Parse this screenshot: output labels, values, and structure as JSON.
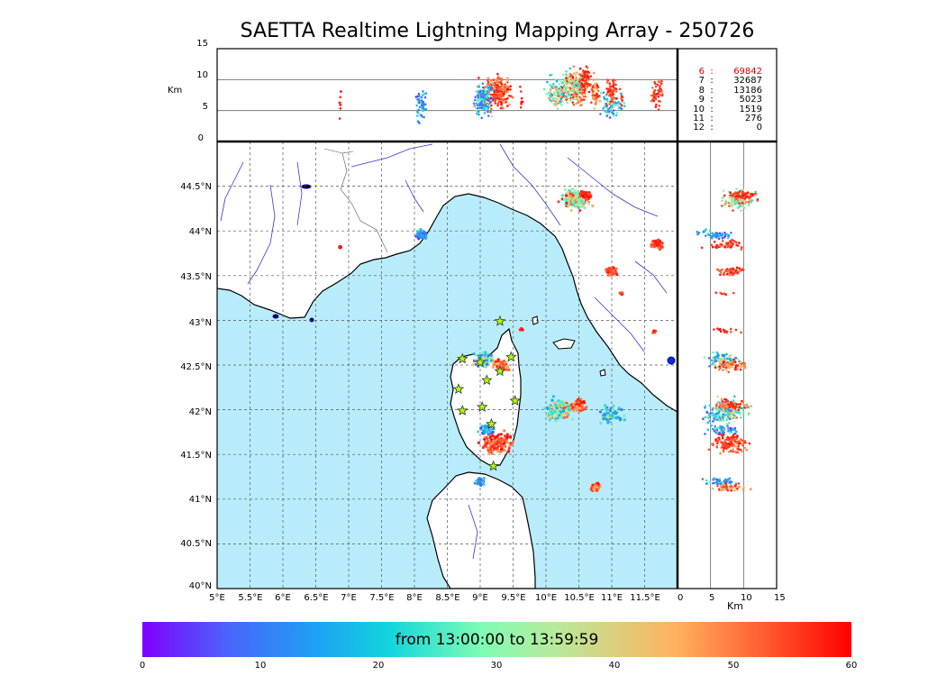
{
  "title": "SAETTA Realtime Lightning Mapping Array - 250726",
  "colors": {
    "sea": "#b8ecfb",
    "land": "#ffffff",
    "grid": "#555555",
    "rivers": "#3333dd",
    "station": "#aaff00",
    "highlight_level": "#dd0000"
  },
  "alt_panel": {
    "unit": "Km",
    "ticks": [
      "15",
      "10",
      "5",
      "0"
    ]
  },
  "right_panel": {
    "unit": "Km",
    "ticks": [
      "0",
      "5",
      "10",
      "15"
    ]
  },
  "map": {
    "lon_ticks": [
      "5°E",
      "5.5°E",
      "6°E",
      "6.5°E",
      "7°E",
      "7.5°E",
      "8°E",
      "8.5°E",
      "9°E",
      "9.5°E",
      "10°E",
      "10.5°E",
      "11°E",
      "11.5°E"
    ],
    "lat_ticks": [
      "44.5°N",
      "44°N",
      "43.5°N",
      "43°N",
      "42.5°N",
      "42°N",
      "41.5°N",
      "41°N",
      "40.5°N",
      "40°N"
    ],
    "lon_min": 5,
    "lon_max": 12,
    "lat_min": 40,
    "lat_max": 45,
    "stations": [
      [
        9.3,
        42.99
      ],
      [
        8.73,
        42.57
      ],
      [
        9.47,
        42.59
      ],
      [
        9.0,
        42.53
      ],
      [
        9.3,
        42.43
      ],
      [
        9.1,
        42.33
      ],
      [
        8.67,
        42.23
      ],
      [
        9.53,
        42.1
      ],
      [
        9.03,
        42.03
      ],
      [
        8.73,
        41.99
      ],
      [
        9.17,
        41.84
      ],
      [
        9.2,
        41.37
      ]
    ]
  },
  "stats": [
    {
      "level": "6",
      "count": "69842",
      "highlight": true
    },
    {
      "level": "7",
      "count": "32687",
      "highlight": false
    },
    {
      "level": "8",
      "count": "13186",
      "highlight": false
    },
    {
      "level": "9",
      "count": "5023",
      "highlight": false
    },
    {
      "level": "10",
      "count": "1519",
      "highlight": false
    },
    {
      "level": "11",
      "count": "276",
      "highlight": false
    },
    {
      "level": "12",
      "count": "0",
      "highlight": false
    }
  ],
  "colorbar": {
    "caption": "from 13:00:00 to 13:59:59",
    "ticks": [
      "0",
      "10",
      "20",
      "30",
      "40",
      "50",
      "60"
    ],
    "min": 0,
    "max": 60
  },
  "clusters": [
    {
      "lon": 8.1,
      "lat": 43.96,
      "spread": 0.1,
      "minutes": [
        5,
        25
      ],
      "alt": 6,
      "n": 50
    },
    {
      "lon": 9.05,
      "lat": 42.56,
      "spread": 0.15,
      "minutes": [
        5,
        40
      ],
      "alt": 7,
      "n": 90
    },
    {
      "lon": 9.3,
      "lat": 42.5,
      "spread": 0.12,
      "minutes": [
        40,
        60
      ],
      "alt": 8,
      "n": 70
    },
    {
      "lon": 9.25,
      "lat": 41.63,
      "spread": 0.22,
      "minutes": [
        45,
        60
      ],
      "alt": 8,
      "n": 140
    },
    {
      "lon": 9.1,
      "lat": 41.78,
      "spread": 0.12,
      "minutes": [
        2,
        30
      ],
      "alt": 7,
      "n": 50
    },
    {
      "lon": 9.0,
      "lat": 41.2,
      "spread": 0.1,
      "minutes": [
        8,
        30
      ],
      "alt": 6,
      "n": 40
    },
    {
      "lon": 10.2,
      "lat": 42.0,
      "spread": 0.22,
      "minutes": [
        15,
        55
      ],
      "alt": 8,
      "n": 140
    },
    {
      "lon": 10.5,
      "lat": 42.05,
      "spread": 0.12,
      "minutes": [
        45,
        60
      ],
      "alt": 8,
      "n": 70
    },
    {
      "lon": 11.0,
      "lat": 41.95,
      "spread": 0.2,
      "minutes": [
        5,
        35
      ],
      "alt": 6,
      "n": 70
    },
    {
      "lon": 10.45,
      "lat": 44.35,
      "spread": 0.22,
      "minutes": [
        20,
        60
      ],
      "alt": 9,
      "n": 130
    },
    {
      "lon": 10.6,
      "lat": 44.4,
      "spread": 0.08,
      "minutes": [
        50,
        60
      ],
      "alt": 10,
      "n": 60
    },
    {
      "lon": 11.0,
      "lat": 43.55,
      "spread": 0.1,
      "minutes": [
        48,
        60
      ],
      "alt": 8,
      "n": 60
    },
    {
      "lon": 11.7,
      "lat": 43.85,
      "spread": 0.1,
      "minutes": [
        50,
        60
      ],
      "alt": 8,
      "n": 40
    },
    {
      "lon": 10.75,
      "lat": 41.13,
      "spread": 0.08,
      "minutes": [
        40,
        60
      ],
      "alt": 8,
      "n": 50
    },
    {
      "lon": 6.87,
      "lat": 43.82,
      "spread": 0.02,
      "minutes": [
        55,
        60
      ],
      "alt": 6,
      "n": 8
    },
    {
      "lon": 11.15,
      "lat": 43.3,
      "spread": 0.03,
      "minutes": [
        50,
        60
      ],
      "alt": 7,
      "n": 8
    },
    {
      "lon": 9.62,
      "lat": 42.9,
      "spread": 0.03,
      "minutes": [
        55,
        60
      ],
      "alt": 7,
      "n": 8
    },
    {
      "lon": 11.65,
      "lat": 42.87,
      "spread": 0.03,
      "minutes": [
        50,
        60
      ],
      "alt": 8,
      "n": 8
    }
  ]
}
